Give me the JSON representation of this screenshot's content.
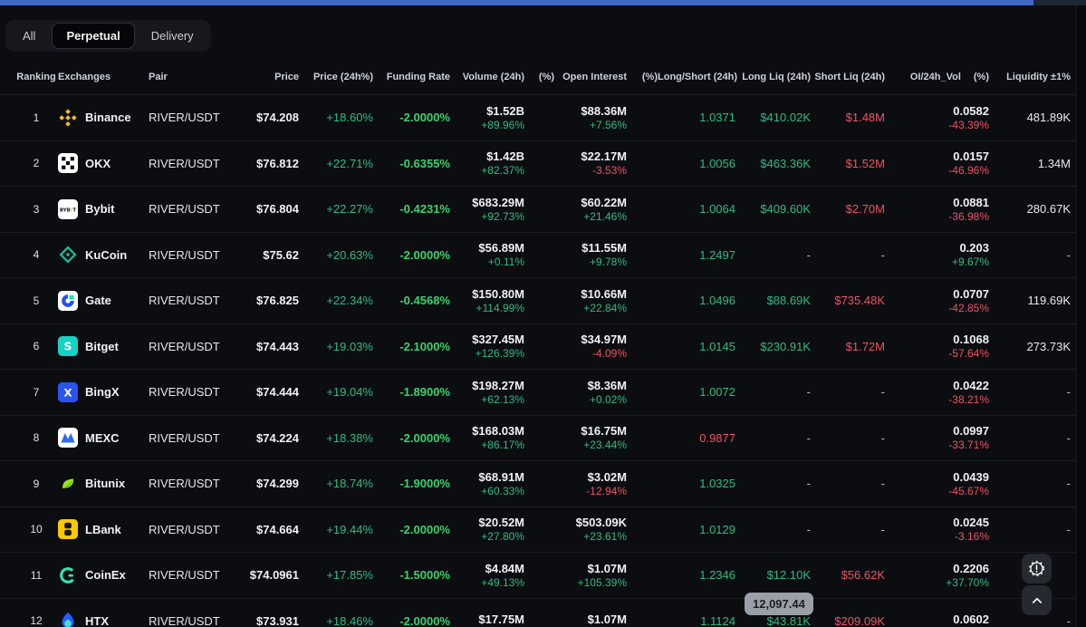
{
  "colors": {
    "green": "#2ebd85",
    "red": "#ef5266",
    "funding_green": "#35d46e",
    "topbar_blue": "#3e6ac4"
  },
  "tabs": {
    "items": [
      {
        "label": "All"
      },
      {
        "label": "Perpetual"
      },
      {
        "label": "Delivery"
      }
    ],
    "active": "Perpetual"
  },
  "tooltip": {
    "text": "12,097.44"
  },
  "fabs": {
    "alert_icon": "gear-alert-icon",
    "scroll_top_icon": "chevron-up-icon"
  },
  "table": {
    "headers": [
      "Ranking",
      "Exchanges",
      "Pair",
      "Price",
      "Price (24h%)",
      "Funding Rate",
      "Volume (24h)",
      "(%)",
      "Open Interest",
      "(%)",
      "Long/Short (24h)",
      "Long Liq (24h)",
      "Short Liq (24h)",
      "OI/24h_Vol",
      "(%)",
      "Liquidity ±1%"
    ]
  },
  "rows": [
    {
      "rank": "1",
      "name": "Binance",
      "icon": "binance-icon",
      "pair": "RIVER/USDT",
      "price": "$74.208",
      "change24h": "+18.60%",
      "funding": "-2.0000%",
      "volume": "$1.52B",
      "volumePct": "+89.96%",
      "oi": "$88.36M",
      "oiPct": "+7.56%",
      "longShort": "1.0371",
      "longLiq": "$410.02K",
      "shortLiq": "$1.48M",
      "oiVol": "0.0582",
      "oiVolPct": "-43.39%",
      "liquidity": "481.89K"
    },
    {
      "rank": "2",
      "name": "OKX",
      "icon": "okx-icon",
      "pair": "RIVER/USDT",
      "price": "$76.812",
      "change24h": "+22.71%",
      "funding": "-0.6355%",
      "volume": "$1.42B",
      "volumePct": "+82.37%",
      "oi": "$22.17M",
      "oiPct": "-3.53%",
      "longShort": "1.0056",
      "longLiq": "$463.36K",
      "shortLiq": "$1.52M",
      "oiVol": "0.0157",
      "oiVolPct": "-46.96%",
      "liquidity": "1.34M"
    },
    {
      "rank": "3",
      "name": "Bybit",
      "icon": "bybit-icon",
      "pair": "RIVER/USDT",
      "price": "$76.804",
      "change24h": "+22.27%",
      "funding": "-0.4231%",
      "volume": "$683.29M",
      "volumePct": "+92.73%",
      "oi": "$60.22M",
      "oiPct": "+21.46%",
      "longShort": "1.0064",
      "longLiq": "$409.60K",
      "shortLiq": "$2.70M",
      "oiVol": "0.0881",
      "oiVolPct": "-36.98%",
      "liquidity": "280.67K"
    },
    {
      "rank": "4",
      "name": "KuCoin",
      "icon": "kucoin-icon",
      "pair": "RIVER/USDT",
      "price": "$75.62",
      "change24h": "+20.63%",
      "funding": "-2.0000%",
      "volume": "$56.89M",
      "volumePct": "+0.11%",
      "oi": "$11.55M",
      "oiPct": "+9.78%",
      "longShort": "1.2497",
      "longLiq": "-",
      "shortLiq": "-",
      "oiVol": "0.203",
      "oiVolPct": "+9.67%",
      "liquidity": "-"
    },
    {
      "rank": "5",
      "name": "Gate",
      "icon": "gate-icon",
      "pair": "RIVER/USDT",
      "price": "$76.825",
      "change24h": "+22.34%",
      "funding": "-0.4568%",
      "volume": "$150.80M",
      "volumePct": "+114.99%",
      "oi": "$10.66M",
      "oiPct": "+22.84%",
      "longShort": "1.0496",
      "longLiq": "$88.69K",
      "shortLiq": "$735.48K",
      "oiVol": "0.0707",
      "oiVolPct": "-42.85%",
      "liquidity": "119.69K"
    },
    {
      "rank": "6",
      "name": "Bitget",
      "icon": "bitget-icon",
      "pair": "RIVER/USDT",
      "price": "$74.443",
      "change24h": "+19.03%",
      "funding": "-2.1000%",
      "volume": "$327.45M",
      "volumePct": "+126.39%",
      "oi": "$34.97M",
      "oiPct": "-4.09%",
      "longShort": "1.0145",
      "longLiq": "$230.91K",
      "shortLiq": "$1.72M",
      "oiVol": "0.1068",
      "oiVolPct": "-57.64%",
      "liquidity": "273.73K"
    },
    {
      "rank": "7",
      "name": "BingX",
      "icon": "bingx-icon",
      "pair": "RIVER/USDT",
      "price": "$74.444",
      "change24h": "+19.04%",
      "funding": "-1.8900%",
      "volume": "$198.27M",
      "volumePct": "+62.13%",
      "oi": "$8.36M",
      "oiPct": "+0.02%",
      "longShort": "1.0072",
      "longLiq": "-",
      "shortLiq": "-",
      "oiVol": "0.0422",
      "oiVolPct": "-38.21%",
      "liquidity": "-"
    },
    {
      "rank": "8",
      "name": "MEXC",
      "icon": "mexc-icon",
      "pair": "RIVER/USDT",
      "price": "$74.224",
      "change24h": "+18.38%",
      "funding": "-2.0000%",
      "volume": "$168.03M",
      "volumePct": "+86.17%",
      "oi": "$16.75M",
      "oiPct": "+23.44%",
      "longShort": "0.9877",
      "longLiq": "-",
      "shortLiq": "-",
      "oiVol": "0.0997",
      "oiVolPct": "-33.71%",
      "liquidity": "-"
    },
    {
      "rank": "9",
      "name": "Bitunix",
      "icon": "bitunix-icon",
      "pair": "RIVER/USDT",
      "price": "$74.299",
      "change24h": "+18.74%",
      "funding": "-1.9000%",
      "volume": "$68.91M",
      "volumePct": "+60.33%",
      "oi": "$3.02M",
      "oiPct": "-12.94%",
      "longShort": "1.0325",
      "longLiq": "-",
      "shortLiq": "-",
      "oiVol": "0.0439",
      "oiVolPct": "-45.67%",
      "liquidity": "-"
    },
    {
      "rank": "10",
      "name": "LBank",
      "icon": "lbank-icon",
      "pair": "RIVER/USDT",
      "price": "$74.664",
      "change24h": "+19.44%",
      "funding": "-2.0000%",
      "volume": "$20.52M",
      "volumePct": "+27.80%",
      "oi": "$503.09K",
      "oiPct": "+23.61%",
      "longShort": "1.0129",
      "longLiq": "-",
      "shortLiq": "-",
      "oiVol": "0.0245",
      "oiVolPct": "-3.16%",
      "liquidity": "-"
    },
    {
      "rank": "11",
      "name": "CoinEx",
      "icon": "coinex-icon",
      "pair": "RIVER/USDT",
      "price": "$74.0961",
      "change24h": "+17.85%",
      "funding": "-1.5000%",
      "volume": "$4.84M",
      "volumePct": "+49.13%",
      "oi": "$1.07M",
      "oiPct": "+105.39%",
      "longShort": "1.2346",
      "longLiq": "$12.10K",
      "shortLiq": "$56.62K",
      "oiVol": "0.2206",
      "oiVolPct": "+37.70%",
      "liquidity": ""
    },
    {
      "rank": "12",
      "name": "HTX",
      "icon": "htx-icon",
      "pair": "RIVER/USDT",
      "price": "$73.931",
      "change24h": "+18.46%",
      "funding": "-2.0000%",
      "volume": "$17.75M",
      "volumePct": "",
      "oi": "$1.07M",
      "oiPct": "",
      "longShort": "1.1124",
      "longLiq": "$43.81K",
      "shortLiq": "$209.09K",
      "oiVol": "0.0602",
      "oiVolPct": "",
      "liquidity": "-"
    }
  ]
}
